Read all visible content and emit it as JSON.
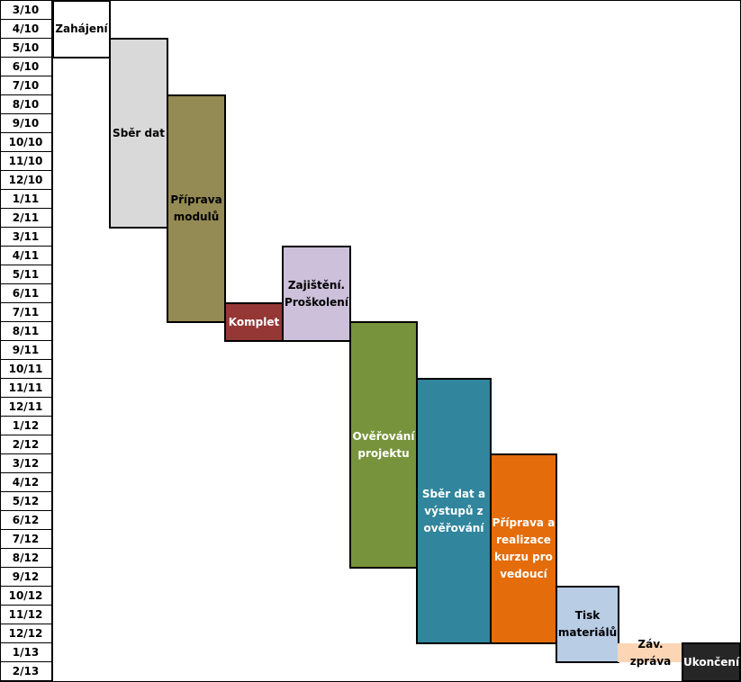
{
  "months": [
    "3/10",
    "4/10",
    "5/10",
    "6/10",
    "7/10",
    "8/10",
    "9/10",
    "10/10",
    "11/10",
    "12/10",
    "1/11",
    "2/11",
    "3/11",
    "4/11",
    "5/11",
    "6/11",
    "7/11",
    "8/11",
    "9/11",
    "10/11",
    "11/11",
    "12/11",
    "1/12",
    "2/12",
    "3/12",
    "4/12",
    "5/12",
    "6/12",
    "7/12",
    "8/12",
    "9/12",
    "10/12",
    "11/12",
    "12/12",
    "1/13",
    "2/13"
  ],
  "tasks": [
    {
      "label": "Zahájení",
      "start": "3/10",
      "end": "5/10",
      "color": "#ffffff",
      "text_color": "#000000"
    },
    {
      "label": "Sběr dat",
      "start": "5/10",
      "end": "2/11",
      "color": "#d9d9d9",
      "text_color": "#000000"
    },
    {
      "label": "Příprava\nmodulů",
      "start": "8/10",
      "end": "7/11",
      "color": "#948a54",
      "text_color": "#000000"
    },
    {
      "label": "Komplet",
      "start": "7/11",
      "end": "8/11",
      "color": "#953735",
      "text_color": "#ffffff"
    },
    {
      "label": "Zajištění.\nProškolení",
      "start": "4/11",
      "end": "8/11",
      "color": "#ccc0da",
      "text_color": "#000000"
    },
    {
      "label": "Ověřování\nprojektu",
      "start": "8/11",
      "end": "8/12",
      "color": "#77933c",
      "text_color": "#ffffff"
    },
    {
      "label": "Sběr dat a\nvýstupů z\nověřování",
      "start": "11/11",
      "end": "12/12",
      "color": "#31859c",
      "text_color": "#ffffff"
    },
    {
      "label": "Příprava a\nrealizace\nkurzu pro\nvedoucí",
      "start": "3/12",
      "end": "12/12",
      "color": "#e46c0a",
      "text_color": "#ffffff"
    },
    {
      "label": "Tisk\nmateriálů",
      "start": "10/12",
      "end": "1/13",
      "color": "#b9cde5",
      "text_color": "#000000"
    },
    {
      "label": "Záv. zpráva",
      "start": "1/13",
      "end": "1/13",
      "color": "#fcd5b5",
      "text_color": "#000000"
    },
    {
      "label": "Ukončení",
      "start": "1/13",
      "end": "2/13",
      "color": "#262626",
      "text_color": "#ffffff"
    }
  ]
}
